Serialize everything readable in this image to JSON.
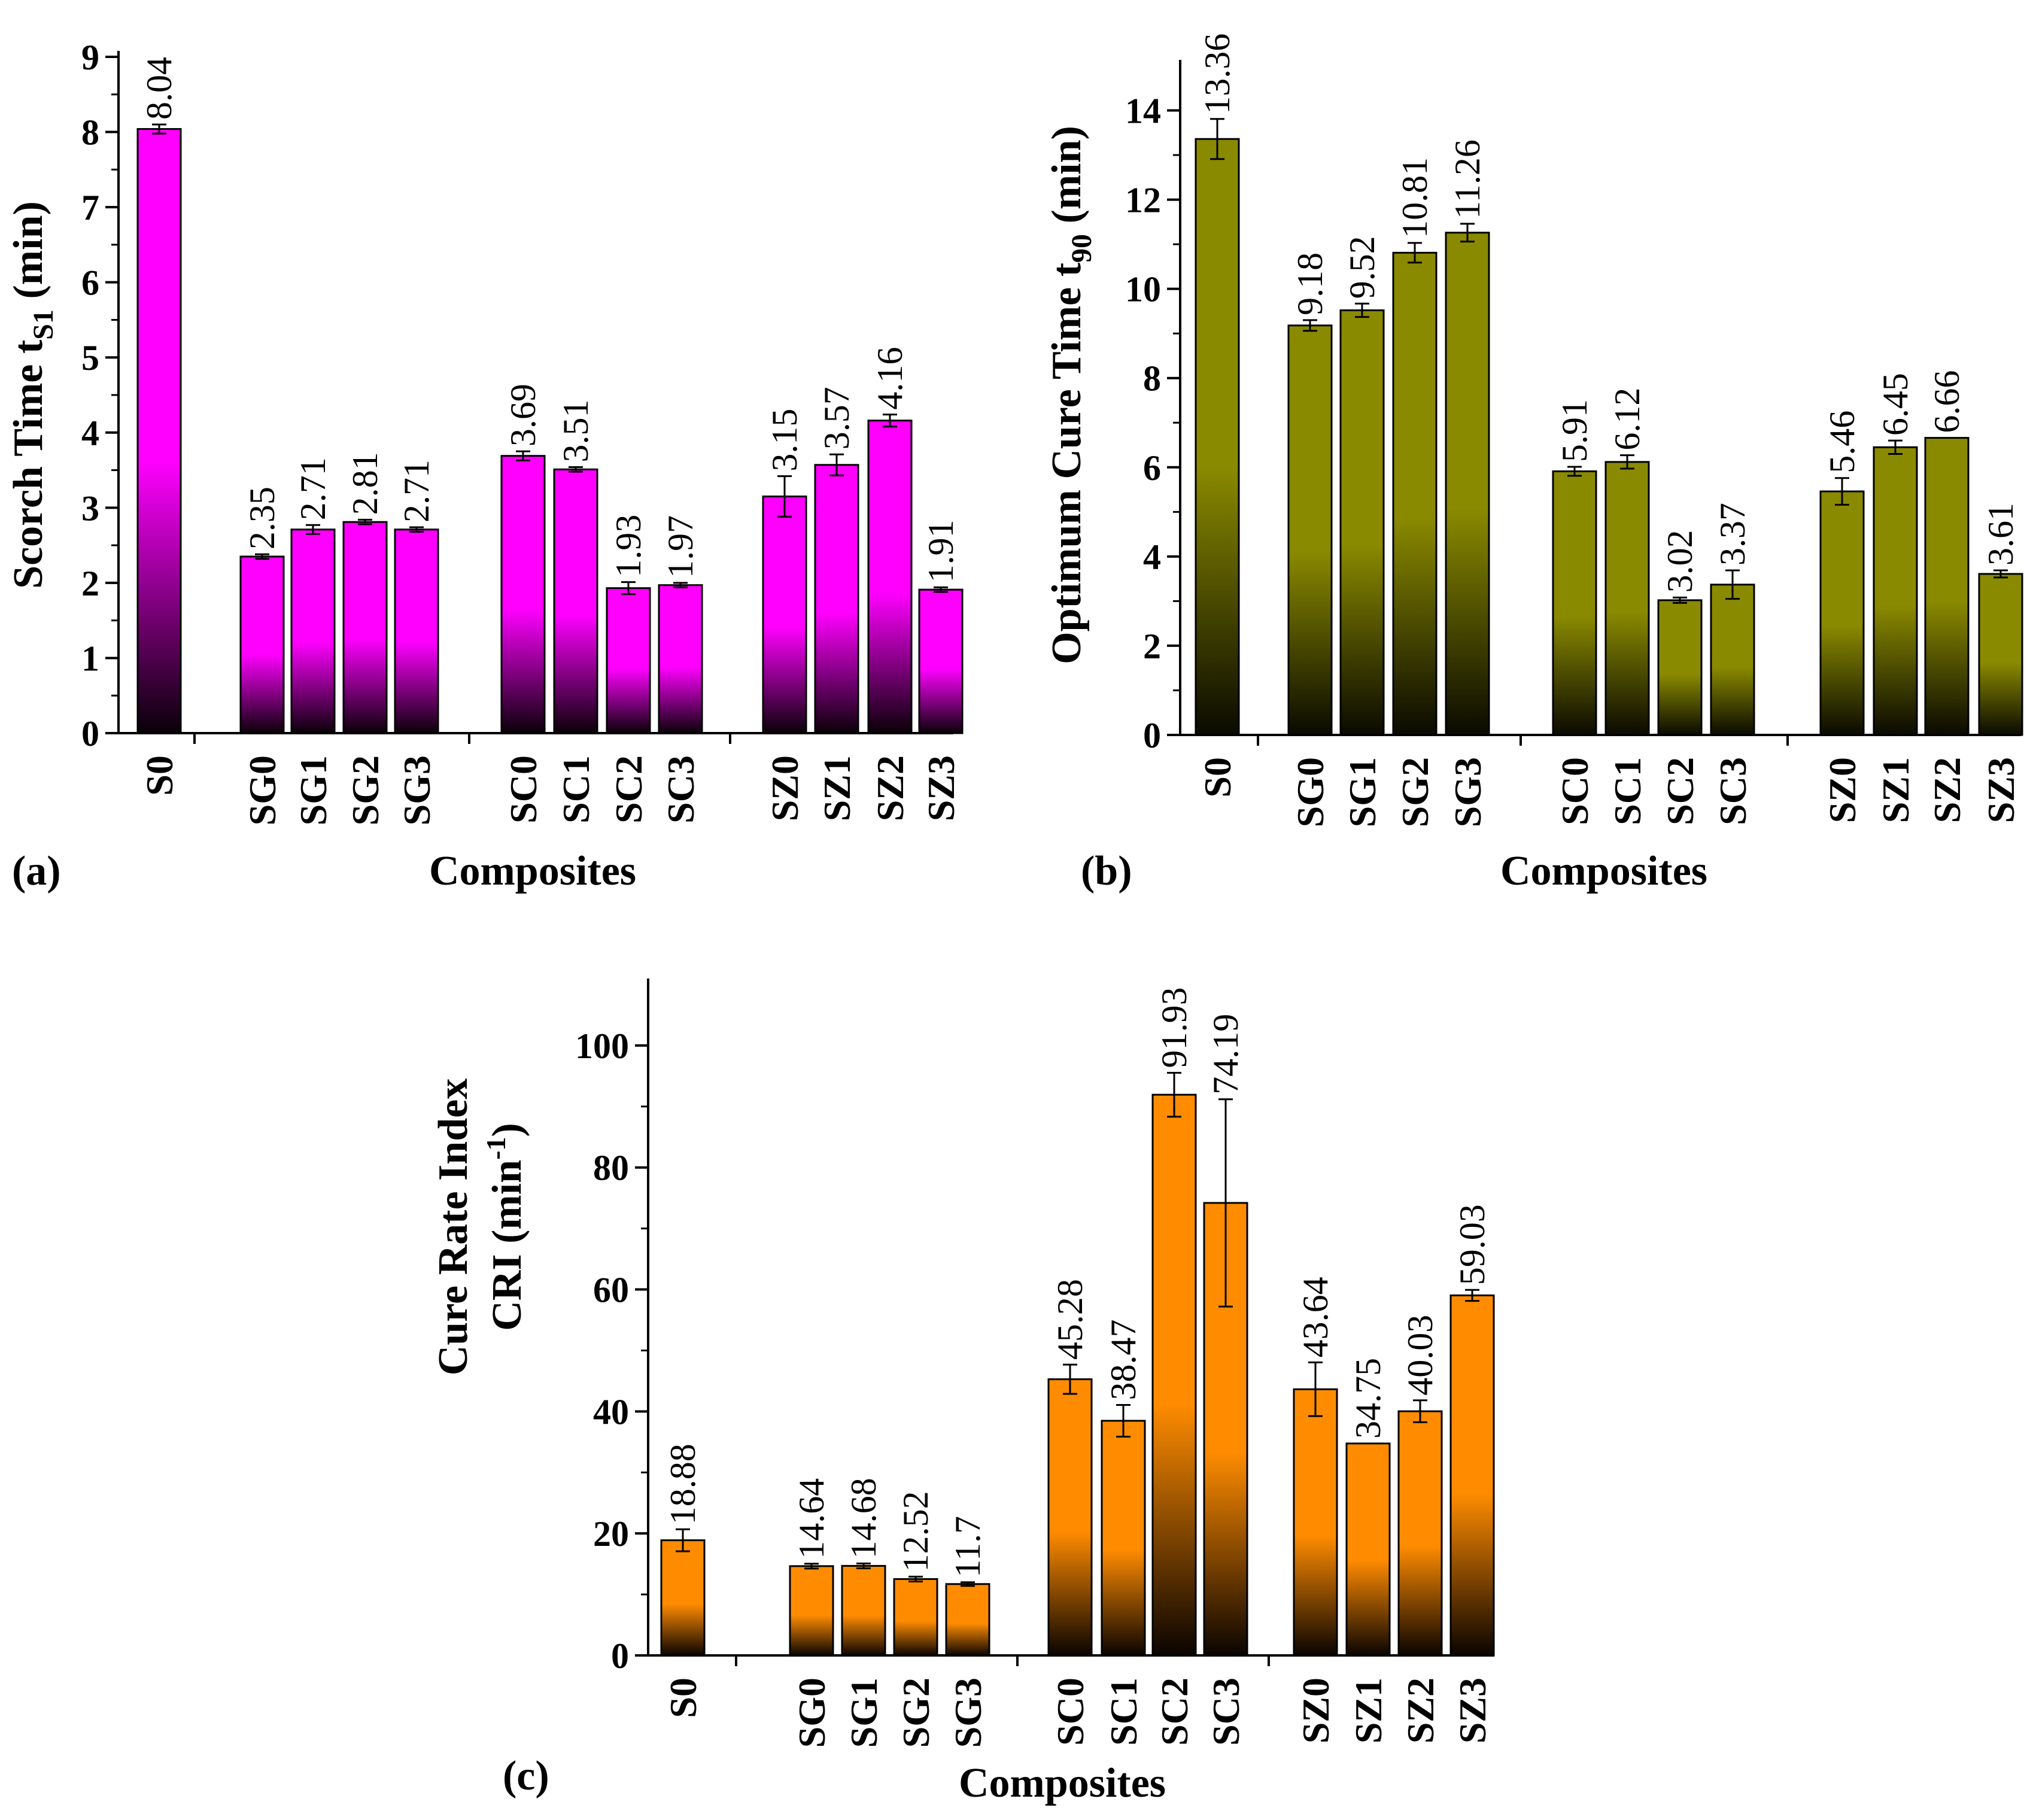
{
  "chart_data": [
    {
      "type": "bar",
      "panel_label": "(a)",
      "title": "",
      "ylabel_main": "Scorch Time t",
      "ylabel_sub": "S1",
      "ylabel_tail": " (min)",
      "xlabel": "Composites",
      "ylim": [
        0,
        9
      ],
      "yticks": [
        "0",
        "1",
        "2",
        "3",
        "4",
        "5",
        "6",
        "7",
        "8",
        "9"
      ],
      "groups": [
        [
          "S0"
        ],
        [
          "SG0",
          "SG1",
          "SG2",
          "SG3"
        ],
        [
          "SC0",
          "SC1",
          "SC2",
          "SC3"
        ],
        [
          "SZ0",
          "SZ1",
          "SZ2",
          "SZ3"
        ]
      ],
      "categories": [
        "S0",
        "SG0",
        "SG1",
        "SG2",
        "SG3",
        "SC0",
        "SC1",
        "SC2",
        "SC3",
        "SZ0",
        "SZ1",
        "SZ2",
        "SZ3"
      ],
      "values": [
        8.04,
        2.35,
        2.71,
        2.81,
        2.71,
        3.69,
        3.51,
        1.93,
        1.97,
        3.15,
        3.57,
        4.16,
        1.91
      ],
      "value_labels": [
        "8.04",
        "2.35",
        "2.71",
        "2.81",
        "2.71",
        "3.69",
        "3.51",
        "1.93",
        "1.97",
        "3.15",
        "3.57",
        "4.16",
        "1.91"
      ],
      "errors": [
        0.06,
        0.03,
        0.06,
        0.03,
        0.03,
        0.06,
        0.03,
        0.08,
        0.03,
        0.27,
        0.14,
        0.08,
        0.03
      ],
      "bar_color": "#ff00ff",
      "bar_color_dark": "#0a0008"
    },
    {
      "type": "bar",
      "panel_label": "(b)",
      "title": "",
      "ylabel_main": "Optimum Cure Time t",
      "ylabel_sub": "90",
      "ylabel_tail": " (min)",
      "xlabel": "Composites",
      "ylim": [
        0,
        15
      ],
      "yticks": [
        "0",
        "2",
        "4",
        "6",
        "8",
        "10",
        "12",
        "14"
      ],
      "groups": [
        [
          "S0"
        ],
        [
          "SG0",
          "SG1",
          "SG2",
          "SG3"
        ],
        [
          "SC0",
          "SC1",
          "SC2",
          "SC3"
        ],
        [
          "SZ0",
          "SZ1",
          "SZ2",
          "SZ3"
        ]
      ],
      "categories": [
        "S0",
        "SG0",
        "SG1",
        "SG2",
        "SG3",
        "SC0",
        "SC1",
        "SC2",
        "SC3",
        "SZ0",
        "SZ1",
        "SZ2",
        "SZ3"
      ],
      "values": [
        13.36,
        9.18,
        9.52,
        10.81,
        11.26,
        5.91,
        6.12,
        3.02,
        3.37,
        5.46,
        6.45,
        6.66,
        3.61
      ],
      "value_labels": [
        "13.36",
        "9.18",
        "9.52",
        "10.81",
        "11.26",
        "5.91",
        "6.12",
        "3.02",
        "3.37",
        "5.46",
        "6.45",
        "6.66",
        "3.61"
      ],
      "errors": [
        0.45,
        0.12,
        0.15,
        0.22,
        0.2,
        0.1,
        0.15,
        0.06,
        0.32,
        0.3,
        0.15,
        0.0,
        0.08
      ],
      "bar_color": "#8a8a00",
      "bar_color_dark": "#0a0a00"
    },
    {
      "type": "bar",
      "panel_label": "(c)",
      "title": "",
      "ylabel_line1": "Cure Rate Index",
      "ylabel_main": "CRI (min",
      "ylabel_sup": "-1",
      "ylabel_tail": ")",
      "xlabel": "Composites",
      "ylim": [
        0,
        110
      ],
      "yticks": [
        "0",
        "20",
        "40",
        "60",
        "80",
        "100"
      ],
      "groups": [
        [
          "S0"
        ],
        [
          "SG0",
          "SG1",
          "SG2",
          "SG3"
        ],
        [
          "SC0",
          "SC1",
          "SC2",
          "SC3"
        ],
        [
          "SZ0",
          "SZ1",
          "SZ2",
          "SZ3"
        ]
      ],
      "categories": [
        "S0",
        "SG0",
        "SG1",
        "SG2",
        "SG3",
        "SC0",
        "SC1",
        "SC2",
        "SC3",
        "SZ0",
        "SZ1",
        "SZ2",
        "SZ3"
      ],
      "values": [
        18.88,
        14.64,
        14.68,
        12.52,
        11.7,
        45.28,
        38.47,
        91.93,
        74.19,
        43.64,
        34.75,
        40.03,
        59.03
      ],
      "value_labels": [
        "18.88",
        "14.64",
        "14.68",
        "12.52",
        "11.7",
        "45.28",
        "38.47",
        "91.93",
        "74.19",
        "43.64",
        "34.75",
        "40.03",
        "59.03"
      ],
      "errors": [
        1.8,
        0.4,
        0.4,
        0.4,
        0.3,
        2.4,
        2.6,
        3.6,
        17.0,
        4.4,
        0.0,
        1.8,
        0.9
      ],
      "bar_color": "#ff8c00",
      "bar_color_dark": "#0a0400"
    }
  ]
}
